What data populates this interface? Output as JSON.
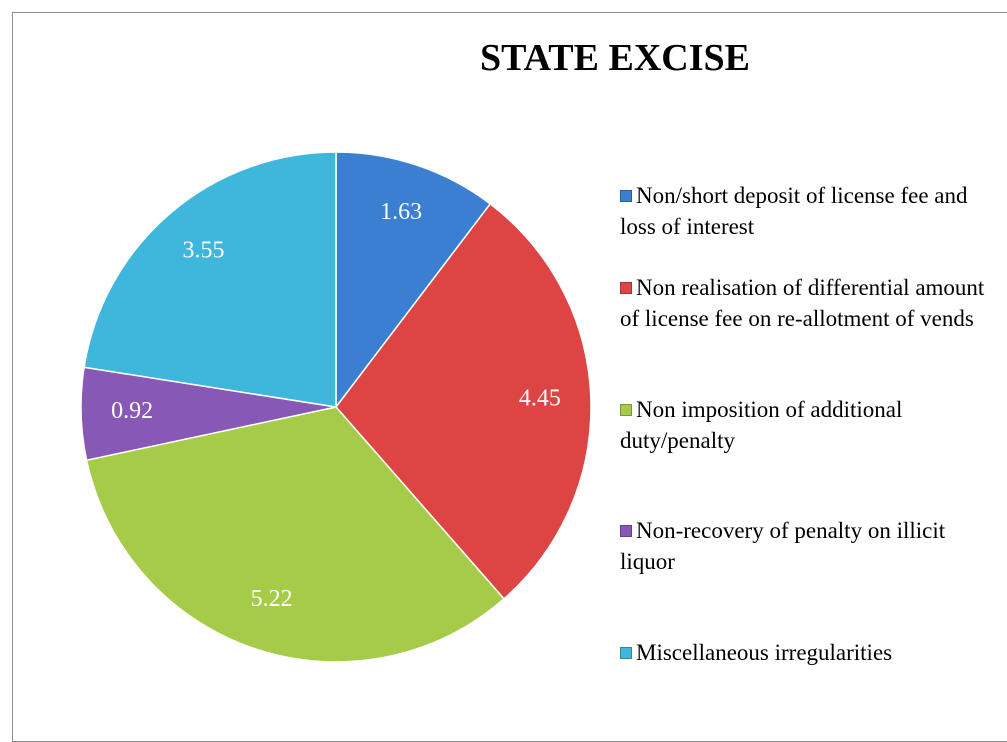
{
  "chart_data": {
    "type": "pie",
    "title": "STATE EXCISE",
    "categories": [
      "Non/short deposit of license fee and loss of interest",
      "Non realisation of differential amount of license fee on re-allotment of vends",
      "Non imposition of additional duty/penalty",
      "Non-recovery of penalty on illicit liquor",
      "Miscellaneous irregularities"
    ],
    "values": [
      1.63,
      4.45,
      5.22,
      0.92,
      3.55
    ],
    "colors": [
      "#3a7fd1",
      "#dc4543",
      "#a6cb48",
      "#8758b5",
      "#3fb7dc"
    ],
    "legend": "right"
  }
}
